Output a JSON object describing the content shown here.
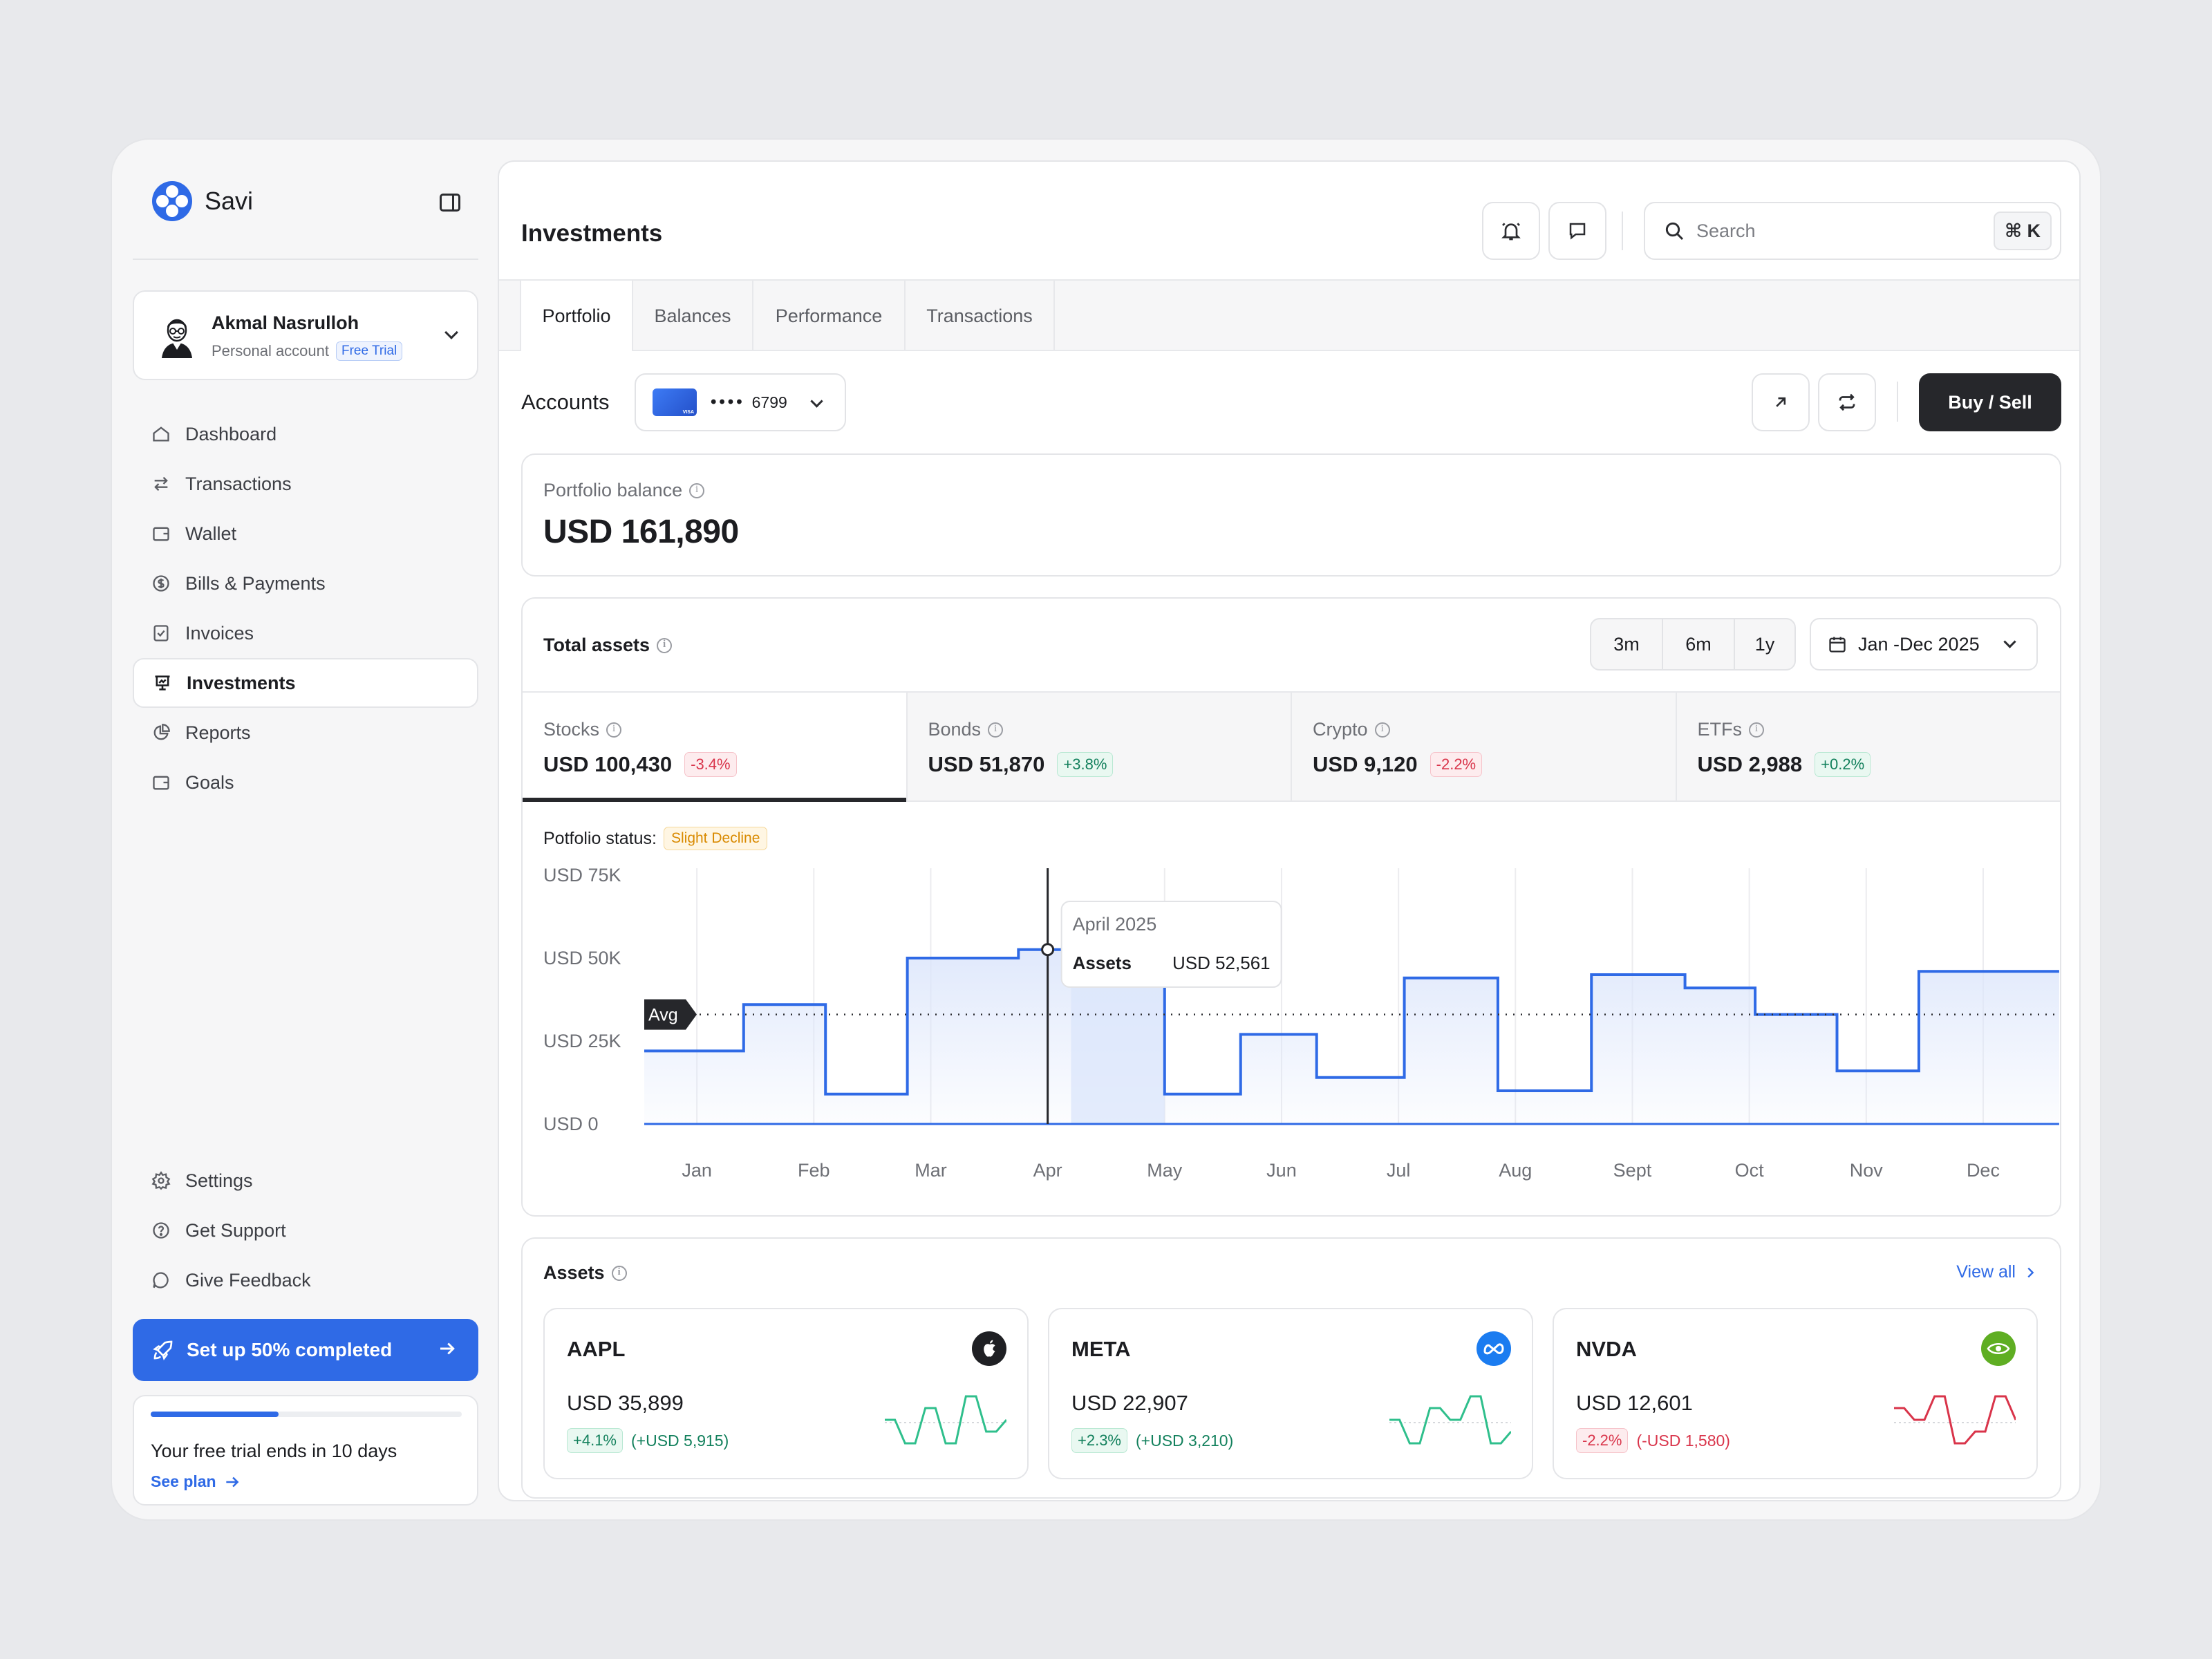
{
  "sidebar": {
    "brand": "Savi",
    "profile": {
      "name": "Akmal Nasrulloh",
      "account_type": "Personal account",
      "badge": "Free Trial"
    },
    "nav": [
      {
        "label": "Dashboard",
        "icon": "home-icon"
      },
      {
        "label": "Transactions",
        "icon": "arrows-swap-icon"
      },
      {
        "label": "Wallet",
        "icon": "wallet-icon"
      },
      {
        "label": "Bills & Payments",
        "icon": "dollar-circle-icon"
      },
      {
        "label": "Invoices",
        "icon": "invoice-check-icon"
      },
      {
        "label": "Investments",
        "icon": "presentation-chart-icon",
        "active": true
      },
      {
        "label": "Reports",
        "icon": "pie-chart-icon"
      },
      {
        "label": "Goals",
        "icon": "wallet-icon"
      }
    ],
    "bottom_nav": [
      {
        "label": "Settings",
        "icon": "gear-icon"
      },
      {
        "label": "Get Support",
        "icon": "help-circle-icon"
      },
      {
        "label": "Give Feedback",
        "icon": "chat-bubble-icon"
      }
    ],
    "setup": {
      "label": "Set up 50% completed",
      "progress": 0.5
    },
    "trial": {
      "text": "Your free trial ends in 10 days",
      "link": "See plan",
      "progress": 0.41
    }
  },
  "header": {
    "title": "Investments",
    "search_placeholder": "Search",
    "shortcut": "⌘ K"
  },
  "tabs": [
    "Portfolio",
    "Balances",
    "Performance",
    "Transactions"
  ],
  "accounts": {
    "label": "Accounts",
    "masked": "••••",
    "last4": "6799",
    "buy_sell": "Buy / Sell"
  },
  "balance": {
    "label": "Portfolio balance",
    "value": "USD 161,890"
  },
  "total_assets": {
    "title": "Total assets",
    "ranges": [
      "3m",
      "6m",
      "1y"
    ],
    "date_range": "Jan -Dec 2025",
    "categories": [
      {
        "name": "Stocks",
        "value": "USD 100,430",
        "change": "-3.4%",
        "dir": "neg",
        "active": true
      },
      {
        "name": "Bonds",
        "value": "USD 51,870",
        "change": "+3.8%",
        "dir": "pos"
      },
      {
        "name": "Crypto",
        "value": "USD 9,120",
        "change": "-2.2%",
        "dir": "neg"
      },
      {
        "name": "ETFs",
        "value": "USD 2,988",
        "change": "+0.2%",
        "dir": "pos"
      }
    ],
    "status_label": "Potfolio status:",
    "status_value": "Slight Decline",
    "avg_label": "Avg",
    "tooltip": {
      "title": "April 2025",
      "label": "Assets",
      "value": "USD 52,561"
    }
  },
  "chart_data": {
    "type": "area",
    "step": true,
    "categories": [
      "Jan",
      "Feb",
      "Mar",
      "Apr",
      "May",
      "Jun",
      "Jul",
      "Aug",
      "Sept",
      "Oct",
      "Nov",
      "Dec"
    ],
    "segments": [
      [
        0,
        22000
      ],
      [
        0.85,
        36000
      ],
      [
        1.55,
        9000
      ],
      [
        2.25,
        50000
      ],
      [
        3.2,
        52561
      ],
      [
        3.65,
        62000
      ],
      [
        4.45,
        9000
      ],
      [
        5.1,
        27000
      ],
      [
        5.75,
        14000
      ],
      [
        6.5,
        44000
      ],
      [
        7.3,
        10000
      ],
      [
        8.1,
        45000
      ],
      [
        8.9,
        41000
      ],
      [
        9.5,
        33000
      ],
      [
        10.2,
        16000
      ],
      [
        10.9,
        46000
      ]
    ],
    "x_end": 12.1,
    "avg": 33000,
    "yticks": [
      "USD 0",
      "USD 25K",
      "USD 50K",
      "USD 75K"
    ],
    "ylim": [
      0,
      75000
    ],
    "highlight_index": 4,
    "tooltip_x": 3,
    "colors": {
      "line": "#2f6ae6",
      "fill": "#dbe5fb",
      "grid": "#ececef"
    }
  },
  "assets": {
    "title": "Assets",
    "view_all": "View all",
    "items": [
      {
        "symbol": "AAPL",
        "value": "USD 35,899",
        "change": "+4.1%",
        "abs": "(+USD 5,915)",
        "dir": "pos",
        "logo": "apple-icon",
        "logo_bg": "#1f2024",
        "spark": [
          3,
          3,
          1,
          1,
          4,
          4,
          1,
          1,
          5,
          5,
          2,
          2,
          3
        ]
      },
      {
        "symbol": "META",
        "value": "USD 22,907",
        "change": "+2.3%",
        "abs": "(+USD 3,210)",
        "dir": "pos",
        "logo": "meta-infinity-icon",
        "logo_bg": "#1b7cf0",
        "spark": [
          3,
          3,
          1,
          1,
          4,
          4,
          3,
          3,
          5,
          5,
          1,
          1,
          2
        ]
      },
      {
        "symbol": "NVDA",
        "value": "USD 12,601",
        "change": "-2.2%",
        "abs": "(-USD 1,580)",
        "dir": "neg",
        "logo": "nvidia-eye-icon",
        "logo_bg": "#5fae23",
        "spark": [
          4,
          4,
          3,
          3,
          5,
          5,
          1,
          1,
          2,
          2,
          5,
          5,
          3
        ]
      }
    ]
  }
}
